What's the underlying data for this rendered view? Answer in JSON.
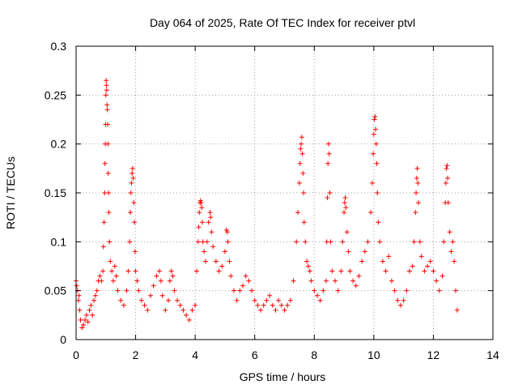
{
  "chart_data": {
    "type": "scatter",
    "title": "Day 064 of 2025, Rate Of TEC Index for receiver ptvl",
    "xlabel": "GPS time / hours",
    "ylabel": "ROTI / TECUs",
    "xlim": [
      0,
      14
    ],
    "ylim": [
      0,
      0.3
    ],
    "xticks": [
      0,
      2,
      4,
      6,
      8,
      10,
      12,
      14
    ],
    "xtick_labels": [
      "0",
      "2",
      "4",
      "6",
      "8",
      "10",
      "12",
      "14"
    ],
    "yticks": [
      0,
      0.05,
      0.1,
      0.15,
      0.2,
      0.25,
      0.3
    ],
    "ytick_labels": [
      "0",
      "0.05",
      "0.1",
      "0.15",
      "0.2",
      "0.25",
      "0.3"
    ],
    "grid": true,
    "marker": "+",
    "color": "#ff0000",
    "series": [
      {
        "name": "ROTI",
        "points": [
          [
            0.0,
            0.06
          ],
          [
            0.02,
            0.055
          ],
          [
            0.05,
            0.05
          ],
          [
            0.08,
            0.04
          ],
          [
            0.1,
            0.045
          ],
          [
            0.12,
            0.03
          ],
          [
            0.15,
            0.02
          ],
          [
            0.2,
            0.012
          ],
          [
            0.25,
            0.015
          ],
          [
            0.3,
            0.02
          ],
          [
            0.35,
            0.025
          ],
          [
            0.4,
            0.018
          ],
          [
            0.45,
            0.03
          ],
          [
            0.5,
            0.035
          ],
          [
            0.55,
            0.025
          ],
          [
            0.6,
            0.04
          ],
          [
            0.65,
            0.045
          ],
          [
            0.7,
            0.05
          ],
          [
            0.75,
            0.06
          ],
          [
            0.8,
            0.065
          ],
          [
            0.85,
            0.06
          ],
          [
            0.9,
            0.07
          ],
          [
            0.92,
            0.095
          ],
          [
            0.94,
            0.12
          ],
          [
            0.96,
            0.15
          ],
          [
            0.97,
            0.18
          ],
          [
            0.98,
            0.2
          ],
          [
            0.99,
            0.22
          ],
          [
            1.0,
            0.25
          ],
          [
            1.01,
            0.265
          ],
          [
            1.02,
            0.26
          ],
          [
            1.03,
            0.255
          ],
          [
            1.04,
            0.24
          ],
          [
            1.05,
            0.235
          ],
          [
            1.06,
            0.22
          ],
          [
            1.07,
            0.2
          ],
          [
            1.08,
            0.17
          ],
          [
            1.09,
            0.15
          ],
          [
            1.1,
            0.13
          ],
          [
            1.12,
            0.1
          ],
          [
            1.15,
            0.08
          ],
          [
            1.2,
            0.07
          ],
          [
            1.25,
            0.06
          ],
          [
            1.3,
            0.075
          ],
          [
            1.35,
            0.065
          ],
          [
            1.4,
            0.05
          ],
          [
            1.5,
            0.04
          ],
          [
            1.6,
            0.035
          ],
          [
            1.7,
            0.05
          ],
          [
            1.75,
            0.07
          ],
          [
            1.8,
            0.1
          ],
          [
            1.82,
            0.13
          ],
          [
            1.84,
            0.15
          ],
          [
            1.86,
            0.16
          ],
          [
            1.88,
            0.17
          ],
          [
            1.9,
            0.175
          ],
          [
            1.92,
            0.165
          ],
          [
            1.94,
            0.14
          ],
          [
            1.96,
            0.12
          ],
          [
            1.98,
            0.09
          ],
          [
            2.0,
            0.07
          ],
          [
            2.05,
            0.06
          ],
          [
            2.1,
            0.05
          ],
          [
            2.2,
            0.04
          ],
          [
            2.3,
            0.035
          ],
          [
            2.4,
            0.03
          ],
          [
            2.5,
            0.045
          ],
          [
            2.6,
            0.055
          ],
          [
            2.7,
            0.065
          ],
          [
            2.8,
            0.07
          ],
          [
            2.85,
            0.06
          ],
          [
            2.9,
            0.045
          ],
          [
            3.0,
            0.03
          ],
          [
            3.1,
            0.04
          ],
          [
            3.15,
            0.06
          ],
          [
            3.2,
            0.07
          ],
          [
            3.25,
            0.065
          ],
          [
            3.3,
            0.05
          ],
          [
            3.4,
            0.04
          ],
          [
            3.5,
            0.035
          ],
          [
            3.6,
            0.03
          ],
          [
            3.7,
            0.025
          ],
          [
            3.8,
            0.02
          ],
          [
            3.9,
            0.03
          ],
          [
            4.0,
            0.035
          ],
          [
            4.05,
            0.07
          ],
          [
            4.1,
            0.1
          ],
          [
            4.12,
            0.115
          ],
          [
            4.14,
            0.13
          ],
          [
            4.16,
            0.14
          ],
          [
            4.18,
            0.142
          ],
          [
            4.2,
            0.14
          ],
          [
            4.22,
            0.135
          ],
          [
            4.24,
            0.12
          ],
          [
            4.26,
            0.1
          ],
          [
            4.3,
            0.09
          ],
          [
            4.35,
            0.08
          ],
          [
            4.4,
            0.1
          ],
          [
            4.45,
            0.12
          ],
          [
            4.5,
            0.13
          ],
          [
            4.52,
            0.125
          ],
          [
            4.55,
            0.11
          ],
          [
            4.6,
            0.095
          ],
          [
            4.7,
            0.08
          ],
          [
            4.8,
            0.07
          ],
          [
            4.9,
            0.075
          ],
          [
            5.0,
            0.09
          ],
          [
            5.05,
            0.112
          ],
          [
            5.08,
            0.11
          ],
          [
            5.1,
            0.1
          ],
          [
            5.15,
            0.08
          ],
          [
            5.2,
            0.065
          ],
          [
            5.3,
            0.05
          ],
          [
            5.4,
            0.04
          ],
          [
            5.5,
            0.05
          ],
          [
            5.6,
            0.055
          ],
          [
            5.7,
            0.065
          ],
          [
            5.8,
            0.06
          ],
          [
            5.9,
            0.05
          ],
          [
            6.0,
            0.04
          ],
          [
            6.1,
            0.035
          ],
          [
            6.2,
            0.03
          ],
          [
            6.3,
            0.035
          ],
          [
            6.4,
            0.04
          ],
          [
            6.5,
            0.045
          ],
          [
            6.6,
            0.035
          ],
          [
            6.7,
            0.03
          ],
          [
            6.8,
            0.04
          ],
          [
            6.9,
            0.035
          ],
          [
            7.0,
            0.03
          ],
          [
            7.1,
            0.035
          ],
          [
            7.2,
            0.04
          ],
          [
            7.3,
            0.06
          ],
          [
            7.4,
            0.1
          ],
          [
            7.45,
            0.13
          ],
          [
            7.5,
            0.16
          ],
          [
            7.52,
            0.18
          ],
          [
            7.54,
            0.195
          ],
          [
            7.56,
            0.2
          ],
          [
            7.58,
            0.207
          ],
          [
            7.6,
            0.19
          ],
          [
            7.62,
            0.17
          ],
          [
            7.64,
            0.15
          ],
          [
            7.66,
            0.12
          ],
          [
            7.7,
            0.1
          ],
          [
            7.75,
            0.08
          ],
          [
            7.8,
            0.075
          ],
          [
            7.85,
            0.07
          ],
          [
            7.9,
            0.06
          ],
          [
            8.0,
            0.05
          ],
          [
            8.1,
            0.045
          ],
          [
            8.2,
            0.04
          ],
          [
            8.3,
            0.05
          ],
          [
            8.4,
            0.06
          ],
          [
            8.42,
            0.1
          ],
          [
            8.44,
            0.145
          ],
          [
            8.46,
            0.18
          ],
          [
            8.48,
            0.2
          ],
          [
            8.5,
            0.19
          ],
          [
            8.52,
            0.15
          ],
          [
            8.55,
            0.1
          ],
          [
            8.6,
            0.07
          ],
          [
            8.7,
            0.06
          ],
          [
            8.8,
            0.05
          ],
          [
            8.9,
            0.07
          ],
          [
            8.95,
            0.1
          ],
          [
            9.0,
            0.13
          ],
          [
            9.02,
            0.14
          ],
          [
            9.04,
            0.145
          ],
          [
            9.06,
            0.135
          ],
          [
            9.1,
            0.11
          ],
          [
            9.15,
            0.09
          ],
          [
            9.2,
            0.07
          ],
          [
            9.3,
            0.06
          ],
          [
            9.4,
            0.055
          ],
          [
            9.5,
            0.065
          ],
          [
            9.6,
            0.08
          ],
          [
            9.7,
            0.09
          ],
          [
            9.8,
            0.1
          ],
          [
            9.9,
            0.13
          ],
          [
            9.95,
            0.16
          ],
          [
            9.98,
            0.19
          ],
          [
            10.0,
            0.21
          ],
          [
            10.02,
            0.225
          ],
          [
            10.04,
            0.228
          ],
          [
            10.06,
            0.215
          ],
          [
            10.08,
            0.2
          ],
          [
            10.1,
            0.18
          ],
          [
            10.12,
            0.15
          ],
          [
            10.15,
            0.12
          ],
          [
            10.2,
            0.1
          ],
          [
            10.3,
            0.08
          ],
          [
            10.4,
            0.07
          ],
          [
            10.5,
            0.085
          ],
          [
            10.6,
            0.06
          ],
          [
            10.7,
            0.05
          ],
          [
            10.8,
            0.04
          ],
          [
            10.9,
            0.035
          ],
          [
            11.0,
            0.04
          ],
          [
            11.1,
            0.05
          ],
          [
            11.2,
            0.07
          ],
          [
            11.3,
            0.075
          ],
          [
            11.35,
            0.1
          ],
          [
            11.4,
            0.13
          ],
          [
            11.42,
            0.15
          ],
          [
            11.44,
            0.165
          ],
          [
            11.46,
            0.175
          ],
          [
            11.48,
            0.16
          ],
          [
            11.5,
            0.14
          ],
          [
            11.55,
            0.1
          ],
          [
            11.6,
            0.085
          ],
          [
            11.7,
            0.07
          ],
          [
            11.8,
            0.075
          ],
          [
            11.9,
            0.08
          ],
          [
            12.0,
            0.07
          ],
          [
            12.1,
            0.06
          ],
          [
            12.2,
            0.05
          ],
          [
            12.3,
            0.065
          ],
          [
            12.35,
            0.1
          ],
          [
            12.4,
            0.14
          ],
          [
            12.42,
            0.16
          ],
          [
            12.44,
            0.175
          ],
          [
            12.46,
            0.178
          ],
          [
            12.48,
            0.165
          ],
          [
            12.5,
            0.14
          ],
          [
            12.55,
            0.11
          ],
          [
            12.6,
            0.09
          ],
          [
            12.65,
            0.1
          ],
          [
            12.7,
            0.08
          ],
          [
            12.75,
            0.05
          ],
          [
            12.8,
            0.03
          ]
        ]
      }
    ]
  }
}
